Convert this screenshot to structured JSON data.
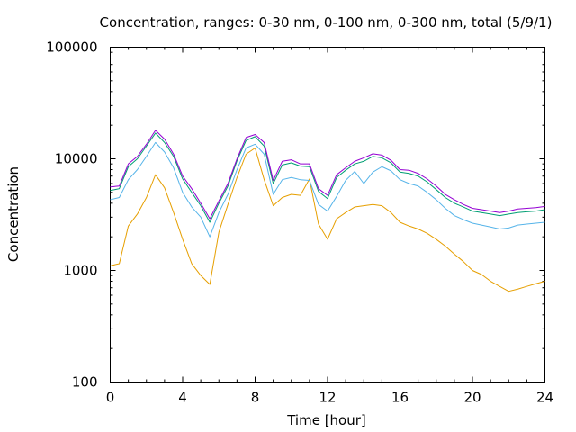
{
  "chart_data": {
    "type": "line",
    "title": "Concentration, ranges: 0-30 nm, 0-100 nm, 0-300 nm, total (5/9/1)",
    "xlabel": "Time [hour]",
    "ylabel": "Concentration",
    "xlim": [
      0,
      24
    ],
    "ylim": [
      100,
      100000
    ],
    "yscale": "log",
    "grid": false,
    "legend": "none",
    "xticks": [
      0,
      4,
      8,
      12,
      16,
      20,
      24
    ],
    "xtick_labels": [
      "0",
      "4",
      "8",
      "12",
      "16",
      "20",
      "24"
    ],
    "yticks": [
      100,
      1000,
      10000,
      100000
    ],
    "ytick_labels": [
      "100",
      "1000",
      "10000",
      "100000"
    ],
    "x": [
      0,
      0.5,
      1,
      1.5,
      2,
      2.5,
      3,
      3.5,
      4,
      4.5,
      5,
      5.5,
      6,
      6.5,
      7,
      7.5,
      8,
      8.5,
      9,
      9.5,
      10,
      10.5,
      11,
      11.5,
      12,
      12.5,
      13,
      13.5,
      14,
      14.5,
      15,
      15.5,
      16,
      16.5,
      17,
      17.5,
      18,
      18.5,
      19,
      19.5,
      20,
      20.5,
      21,
      21.5,
      22,
      22.5,
      23,
      23.5,
      24
    ],
    "series": [
      {
        "color": "#e69f00",
        "values": [
          1100,
          1150,
          2500,
          3200,
          4500,
          7200,
          5500,
          3300,
          1900,
          1150,
          900,
          750,
          2200,
          3900,
          6800,
          11000,
          12500,
          6500,
          3800,
          4500,
          4800,
          4700,
          6600,
          2600,
          1900,
          2900,
          3300,
          3700,
          3800,
          3900,
          3800,
          3300,
          2700,
          2500,
          2350,
          2150,
          1900,
          1650,
          1400,
          1200,
          1000,
          920,
          800,
          720,
          650,
          680,
          720,
          760,
          800
        ]
      },
      {
        "color": "#56b4e9",
        "values": [
          4300,
          4500,
          6500,
          8000,
          10500,
          14000,
          11500,
          8300,
          5000,
          3700,
          3000,
          2000,
          3300,
          4800,
          8000,
          12500,
          13500,
          11000,
          4800,
          6500,
          6800,
          6500,
          6400,
          3900,
          3400,
          4600,
          6400,
          7700,
          6000,
          7600,
          8500,
          7800,
          6500,
          6000,
          5700,
          5000,
          4300,
          3600,
          3100,
          2850,
          2650,
          2550,
          2450,
          2350,
          2400,
          2550,
          2600,
          2650,
          2700
        ]
      },
      {
        "color": "#009e73",
        "values": [
          5200,
          5400,
          8500,
          10000,
          13000,
          17000,
          14000,
          10500,
          6600,
          5000,
          3800,
          2700,
          4000,
          5700,
          9600,
          14600,
          15800,
          13000,
          6000,
          8800,
          9200,
          8600,
          8500,
          5100,
          4400,
          6800,
          7900,
          9000,
          9500,
          10500,
          10200,
          9200,
          7600,
          7400,
          7000,
          6200,
          5300,
          4500,
          4000,
          3700,
          3400,
          3300,
          3200,
          3100,
          3200,
          3300,
          3350,
          3400,
          3500
        ]
      },
      {
        "color": "#9400d3",
        "values": [
          5600,
          5700,
          9000,
          10500,
          13500,
          18000,
          15000,
          11000,
          7000,
          5400,
          4000,
          2900,
          4200,
          6000,
          10000,
          15500,
          16500,
          14000,
          6400,
          9500,
          9800,
          9000,
          9000,
          5400,
          4700,
          7200,
          8300,
          9500,
          10200,
          11100,
          10800,
          9700,
          8000,
          7900,
          7400,
          6600,
          5700,
          4800,
          4300,
          3900,
          3600,
          3500,
          3400,
          3300,
          3400,
          3550,
          3600,
          3650,
          3750
        ]
      }
    ]
  }
}
